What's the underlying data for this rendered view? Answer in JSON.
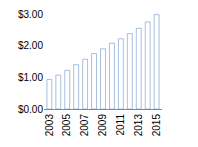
{
  "chart_data": {
    "type": "bar",
    "categories": [
      "2003",
      null,
      "2005",
      null,
      "2007",
      null,
      "2009",
      null,
      "2011",
      null,
      "2013",
      null,
      "2015"
    ],
    "values": [
      0.93,
      1.07,
      1.22,
      1.4,
      1.57,
      1.75,
      1.9,
      2.08,
      2.22,
      2.38,
      2.55,
      2.75,
      2.98
    ],
    "color": "#4f81bd",
    "ylim": [
      0,
      3
    ],
    "yticks": [
      {
        "value": 0,
        "label": "$0.00"
      },
      {
        "value": 1,
        "label": "$1.00"
      },
      {
        "value": 2,
        "label": "$2.00"
      },
      {
        "value": 3,
        "label": "$3.00"
      }
    ],
    "grid": false
  }
}
